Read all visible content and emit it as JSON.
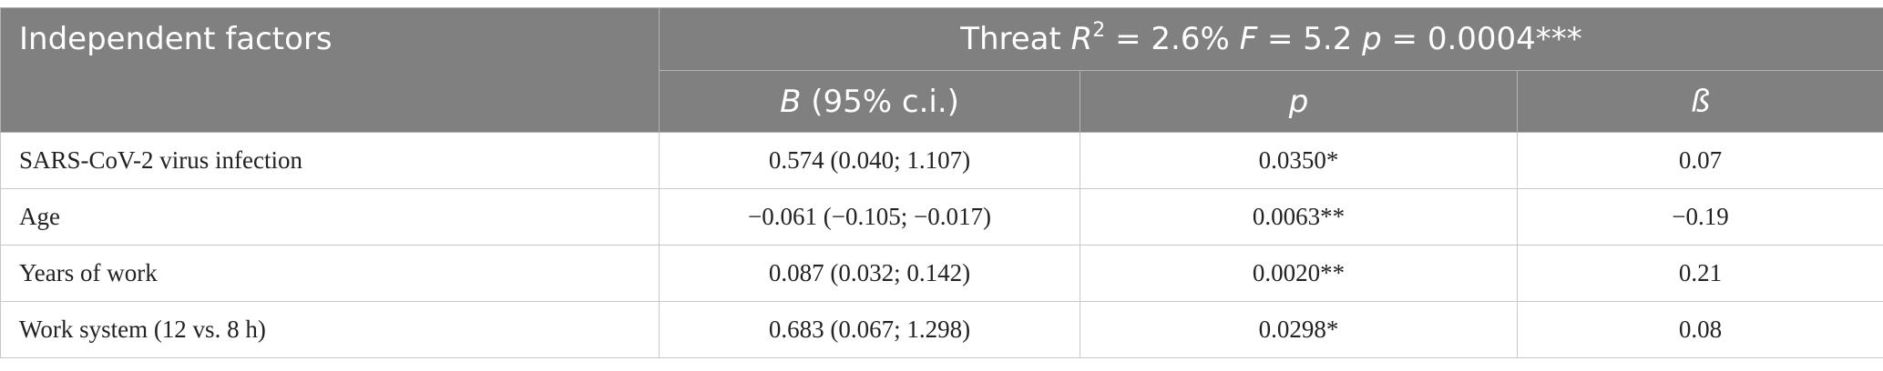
{
  "header": {
    "factor_col": "Independent factors",
    "model": {
      "name": "Threat",
      "r2_symbol": "R",
      "r2_sup": "2",
      "r2_value": "= 2.6%",
      "f_symbol": "F",
      "f_value": "= 5.2",
      "p_symbol": "p",
      "p_value": "= 0.0004***"
    },
    "sub": {
      "b_symbol": "B",
      "b_rest": "(95% c.i.)",
      "p_label": "p",
      "beta_label": "ß"
    }
  },
  "rows": [
    {
      "factor": "SARS-CoV-2 virus infection",
      "b": "0.574 (0.040; 1.107)",
      "p": "0.0350*",
      "beta": "0.07"
    },
    {
      "factor": "Age",
      "b": "−0.061 (−0.105; −0.017)",
      "p": "0.0063**",
      "beta": "−0.19"
    },
    {
      "factor": "Years of work",
      "b": "0.087 (0.032; 0.142)",
      "p": "0.0020**",
      "beta": "0.21"
    },
    {
      "factor": "Work system (12 vs. 8 h)",
      "b": "0.683 (0.067; 1.298)",
      "p": "0.0298*",
      "beta": "0.08"
    }
  ]
}
